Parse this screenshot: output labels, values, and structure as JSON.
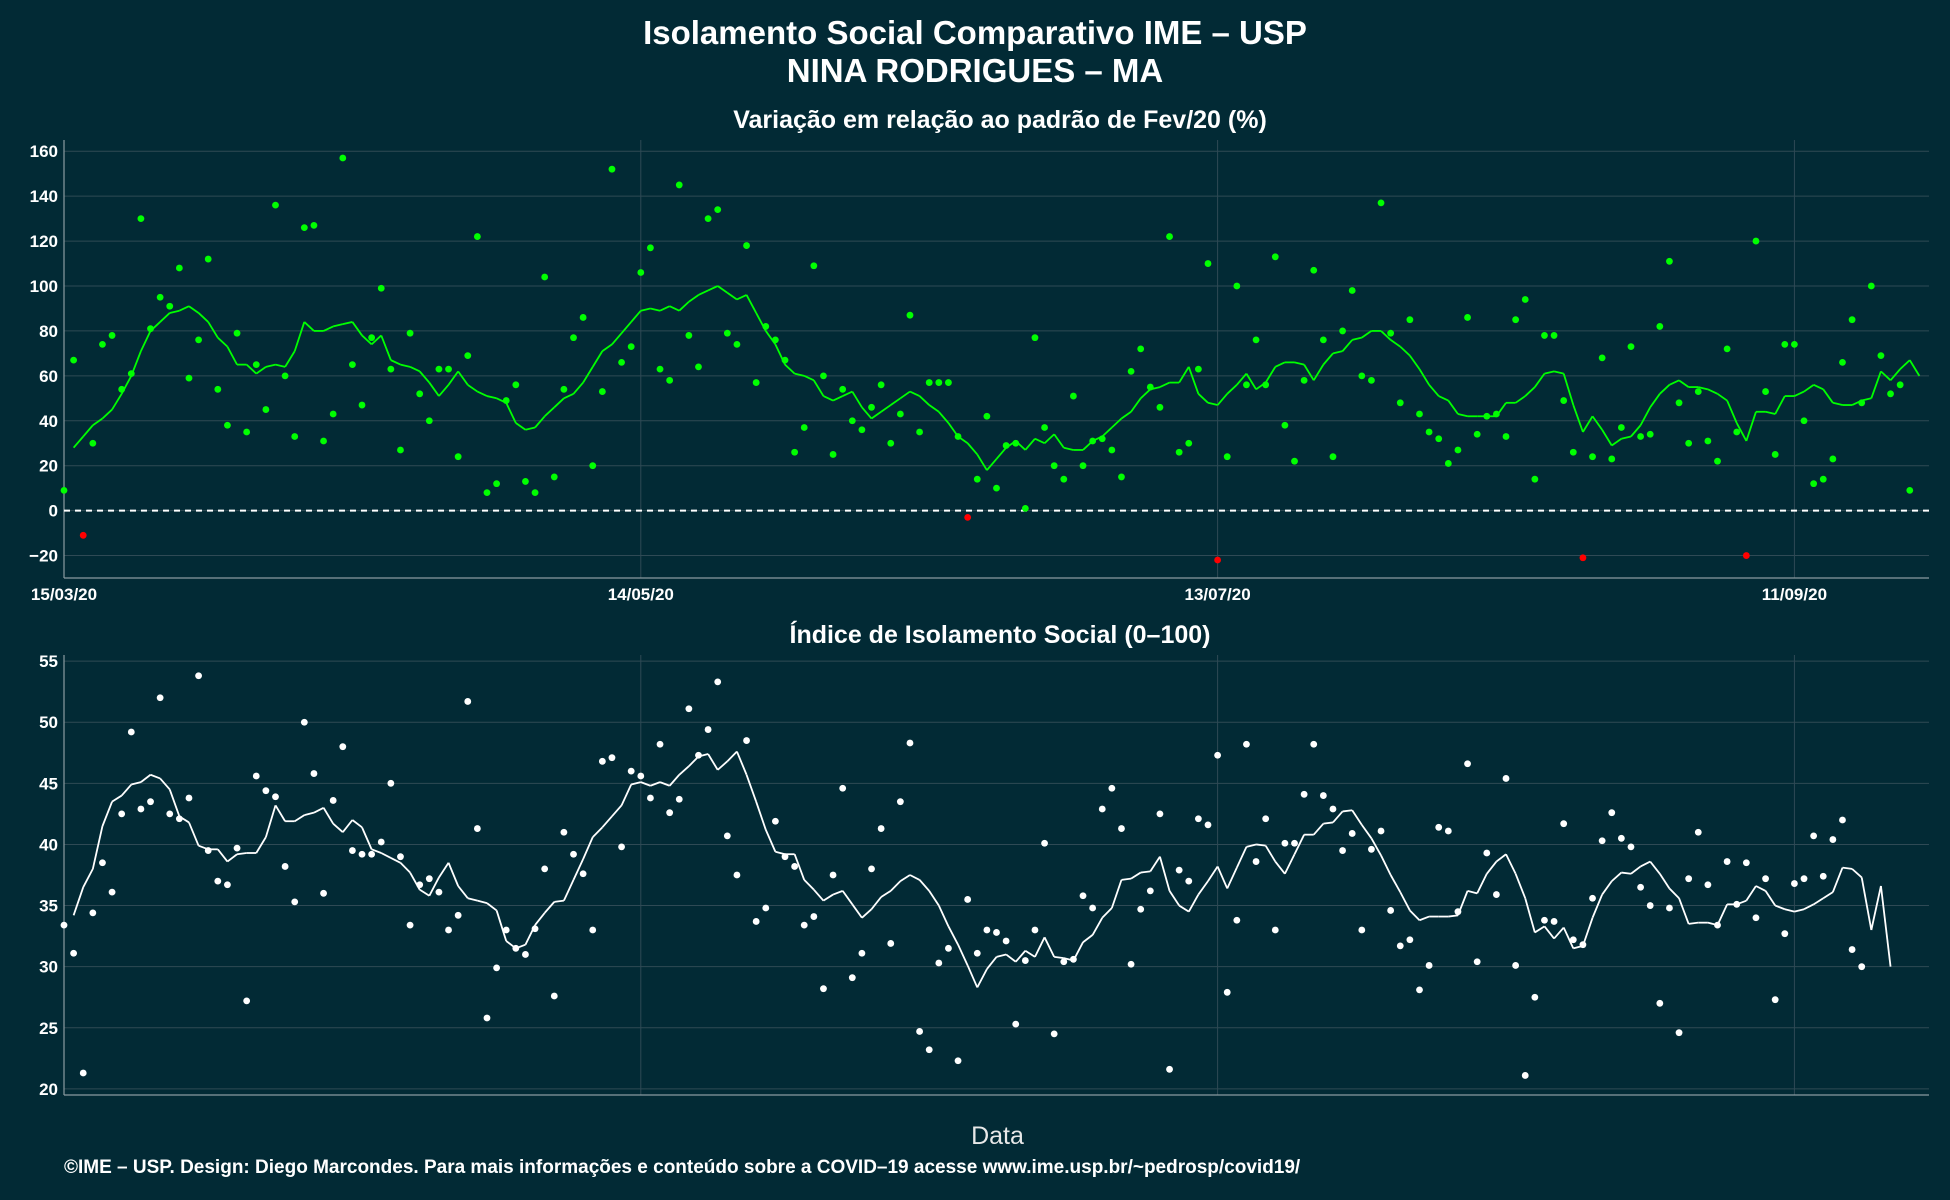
{
  "figure": {
    "title_line1": "Isolamento Social Comparativo IME – USP",
    "title_line2": "NINA RODRIGUES – MA",
    "xlabel": "Data",
    "footer": "©IME – USP. Design: Diego Marcondes. Para mais informações e conteúdo sobre a COVID–19 acesse www.ime.usp.br/~pedrosp/covid19/"
  },
  "colors": {
    "background": "#022a35",
    "grid": "#2f4a55",
    "positive": "#00ff00",
    "negative": "#ff0000",
    "index": "#ffffff"
  },
  "chart_data": [
    {
      "type": "line",
      "title": "Variação em relação ao padrão de Fev/20 (%)",
      "x_start": "15/03/20",
      "x_end": "25/09/20",
      "xticks": [
        "15/03/20",
        "14/05/20",
        "13/07/20",
        "11/09/20"
      ],
      "yticks": [
        -20,
        0,
        20,
        40,
        60,
        80,
        100,
        120,
        140,
        160
      ],
      "ylim": [
        -30,
        165
      ],
      "reference_line": 0,
      "grid": true,
      "series": [
        {
          "kind": "daily_points",
          "values": [
            9,
            67,
            -11,
            30,
            74,
            78,
            54,
            61,
            130,
            81,
            95,
            91,
            108,
            59,
            76,
            112,
            54,
            38,
            79,
            35,
            65,
            45,
            136,
            60,
            33,
            126,
            127,
            31,
            43,
            157,
            65,
            47,
            77,
            99,
            63,
            27,
            79,
            52,
            40,
            63,
            63,
            24,
            69,
            122,
            8,
            12,
            49,
            56,
            13,
            8,
            104,
            15,
            54,
            77,
            86,
            20,
            53,
            152,
            66,
            73,
            106,
            117,
            63,
            58,
            145,
            78,
            64,
            130,
            134,
            79,
            74,
            118,
            57,
            82,
            76,
            67,
            26,
            37,
            109,
            60,
            25,
            54,
            40,
            36,
            46,
            56,
            30,
            43,
            87,
            35,
            57,
            57,
            57,
            33,
            -3,
            14,
            42,
            10,
            29,
            30,
            1,
            77,
            37,
            20,
            14,
            51,
            20,
            31,
            32,
            27,
            15,
            62,
            72,
            55,
            46,
            122,
            26,
            30,
            63,
            110,
            -22,
            24,
            100,
            56,
            76,
            56,
            113,
            38,
            22,
            58,
            107,
            76,
            24,
            80,
            98,
            60,
            58,
            137,
            79,
            48,
            85,
            43,
            35,
            32,
            21,
            27,
            86,
            34,
            42,
            43,
            33,
            85,
            94,
            14,
            78,
            78,
            49,
            26,
            -21,
            24,
            68,
            23,
            37,
            73,
            33,
            34,
            82,
            111,
            48,
            30,
            53,
            31,
            22,
            72,
            35,
            -20,
            120,
            53,
            25,
            74,
            74,
            40,
            12,
            14,
            23,
            66,
            85,
            48,
            100,
            69,
            52,
            56,
            9
          ]
        },
        {
          "kind": "moving_average",
          "values": [
            28,
            33,
            38,
            41,
            45,
            52,
            60,
            71,
            80,
            84,
            88,
            89,
            91,
            88,
            84,
            77,
            73,
            65,
            65,
            61,
            64,
            65,
            64,
            71,
            84,
            80,
            80,
            82,
            83,
            84,
            78,
            74,
            78,
            67,
            65,
            64,
            62,
            57,
            51,
            56,
            62,
            56,
            53,
            51,
            50,
            48,
            39,
            36,
            37,
            42,
            46,
            50,
            52,
            57,
            64,
            71,
            74,
            79,
            84,
            89,
            90,
            89,
            91,
            89,
            93,
            96,
            98,
            100,
            97,
            94,
            96,
            88,
            80,
            74,
            65,
            61,
            60,
            58,
            51,
            49,
            51,
            53,
            46,
            41,
            44,
            47,
            50,
            53,
            51,
            47,
            44,
            39,
            33,
            30,
            25,
            18,
            23,
            28,
            31,
            27,
            32,
            30,
            34,
            28,
            27,
            27,
            31,
            33,
            37,
            41,
            44,
            50,
            54,
            55,
            57,
            57,
            64,
            52,
            48,
            47,
            52,
            56,
            61,
            54,
            57,
            64,
            66,
            66,
            65,
            58,
            65,
            70,
            71,
            76,
            77,
            80,
            80,
            76,
            73,
            69,
            63,
            56,
            51,
            49,
            43,
            42,
            42,
            42,
            42,
            48,
            48,
            51,
            55,
            61,
            62,
            61,
            47,
            35,
            42,
            36,
            29,
            32,
            33,
            38,
            46,
            52,
            56,
            58,
            55,
            55,
            54,
            52,
            49,
            39,
            31,
            44,
            44,
            43,
            51,
            51,
            53,
            56,
            54,
            48,
            47,
            47,
            49,
            50,
            62,
            58,
            63,
            67,
            60
          ]
        }
      ]
    },
    {
      "type": "line",
      "title": "Índice de Isolamento Social (0–100)",
      "x_start": "15/03/20",
      "x_end": "25/09/20",
      "xticks": [
        "15/03/20",
        "14/05/20",
        "13/07/20",
        "11/09/20"
      ],
      "yticks": [
        20,
        25,
        30,
        35,
        40,
        45,
        50,
        55
      ],
      "ylim": [
        19.5,
        55.5
      ],
      "grid": true,
      "series": [
        {
          "kind": "daily_points",
          "values": [
            33.4,
            31.1,
            21.3,
            34.4,
            38.5,
            36.1,
            42.5,
            49.2,
            42.9,
            43.5,
            52,
            42.5,
            42.1,
            43.8,
            53.8,
            39.5,
            37,
            36.7,
            39.7,
            27.2,
            45.6,
            44.4,
            43.9,
            38.2,
            35.3,
            50,
            45.8,
            36,
            43.6,
            48,
            39.5,
            39.2,
            39.2,
            40.2,
            45,
            39,
            33.4,
            36.7,
            37.2,
            36.1,
            33,
            34.2,
            51.7,
            41.3,
            25.8,
            29.9,
            33,
            31.5,
            31,
            33.1,
            38,
            27.6,
            41,
            39.2,
            37.6,
            33,
            46.8,
            47.1,
            39.8,
            46,
            45.6,
            43.8,
            48.2,
            42.6,
            43.7,
            51.1,
            47.3,
            49.4,
            53.3,
            40.7,
            37.5,
            48.5,
            33.7,
            34.8,
            41.9,
            39,
            38.2,
            33.4,
            34.1,
            28.2,
            37.5,
            44.6,
            29.1,
            31.1,
            38,
            41.3,
            31.9,
            43.5,
            48.3,
            24.7,
            23.2,
            30.3,
            31.5,
            22.3,
            35.5,
            31.1,
            33,
            32.8,
            32.1,
            25.3,
            30.5,
            33,
            40.1,
            24.5,
            30.4,
            30.6,
            35.8,
            34.8,
            42.9,
            44.6,
            41.3,
            30.2,
            34.7,
            36.2,
            42.5,
            21.6,
            37.9,
            37,
            42.1,
            41.6,
            47.3,
            27.9,
            33.8,
            48.2,
            38.6,
            42.1,
            33,
            40.1,
            40.1,
            44.1,
            48.2,
            44,
            42.9,
            39.5,
            40.9,
            33,
            39.6,
            41.1,
            34.6,
            31.7,
            32.2,
            28.1,
            30.1,
            41.4,
            41.1,
            34.5,
            46.6,
            30.4,
            39.3,
            35.9,
            45.4,
            30.1,
            21.1,
            27.5,
            33.8,
            33.7,
            41.7,
            32.2,
            31.8,
            35.6,
            40.3,
            42.6,
            40.5,
            39.8,
            36.5,
            35,
            27,
            34.8,
            24.6,
            37.2,
            41,
            36.7,
            33.4,
            38.6,
            35.1,
            38.5,
            34,
            37.2,
            27.3,
            32.7,
            36.8,
            37.2,
            40.7,
            37.4,
            40.4,
            42,
            31.4,
            30
          ]
        },
        {
          "kind": "moving_average",
          "values": [
            34.2,
            36.5,
            38,
            41.5,
            43.5,
            44,
            44.9,
            45.1,
            45.7,
            45.4,
            44.5,
            42.3,
            41.8,
            39.9,
            39.6,
            39.6,
            38.6,
            39.2,
            39.3,
            39.3,
            40.6,
            43.2,
            41.9,
            41.9,
            42.4,
            42.6,
            43,
            41.7,
            41,
            42,
            41.4,
            39.6,
            39.3,
            38.9,
            38.5,
            37.7,
            36.3,
            35.8,
            37.3,
            38.5,
            36.6,
            35.6,
            35.4,
            35.2,
            34.6,
            32.1,
            31.5,
            31.8,
            33.4,
            34.4,
            35.3,
            35.4,
            37.1,
            38.8,
            40.6,
            41.4,
            42.3,
            43.2,
            44.9,
            45.1,
            44.8,
            45.1,
            44.8,
            45.7,
            46.4,
            47.2,
            47.4,
            46.1,
            46.8,
            47.6,
            45.7,
            43.5,
            41.2,
            39.4,
            39.2,
            39.2,
            37.1,
            36.3,
            35.4,
            35.9,
            36.2,
            35.1,
            34,
            34.7,
            35.7,
            36.2,
            37,
            37.5,
            37.1,
            36.2,
            35,
            33.3,
            31.8,
            30.1,
            28.3,
            29.8,
            30.8,
            31,
            30.4,
            31.3,
            30.8,
            32.4,
            30.8,
            30.7,
            30.5,
            32,
            32.6,
            34,
            34.8,
            37.1,
            37.2,
            37.7,
            37.8,
            39,
            36.2,
            35,
            34.5,
            35.9,
            37,
            38.2,
            36.4,
            38.1,
            39.8,
            40,
            39.9,
            38.6,
            37.6,
            39.2,
            40.8,
            40.8,
            41.7,
            41.8,
            42.7,
            42.8,
            41.6,
            40.5,
            39.1,
            37.5,
            36.1,
            34.6,
            33.8,
            34.1,
            34.1,
            34.1,
            34.2,
            36.2,
            36,
            37.6,
            38.6,
            39.2,
            37.6,
            35.6,
            32.8,
            33.3,
            32.3,
            33.2,
            31.5,
            31.7,
            34,
            35.9,
            37,
            37.7,
            37.6,
            38.2,
            38.6,
            37.6,
            36.4,
            35.6,
            33.5,
            33.6,
            33.6,
            33.4,
            35.1,
            35.1,
            35.4,
            36.6,
            36.2,
            35,
            34.7,
            34.5,
            34.7,
            35.1,
            35.6,
            36.1,
            38.1,
            38,
            37.3,
            33,
            36.6,
            30
          ]
        }
      ]
    }
  ]
}
